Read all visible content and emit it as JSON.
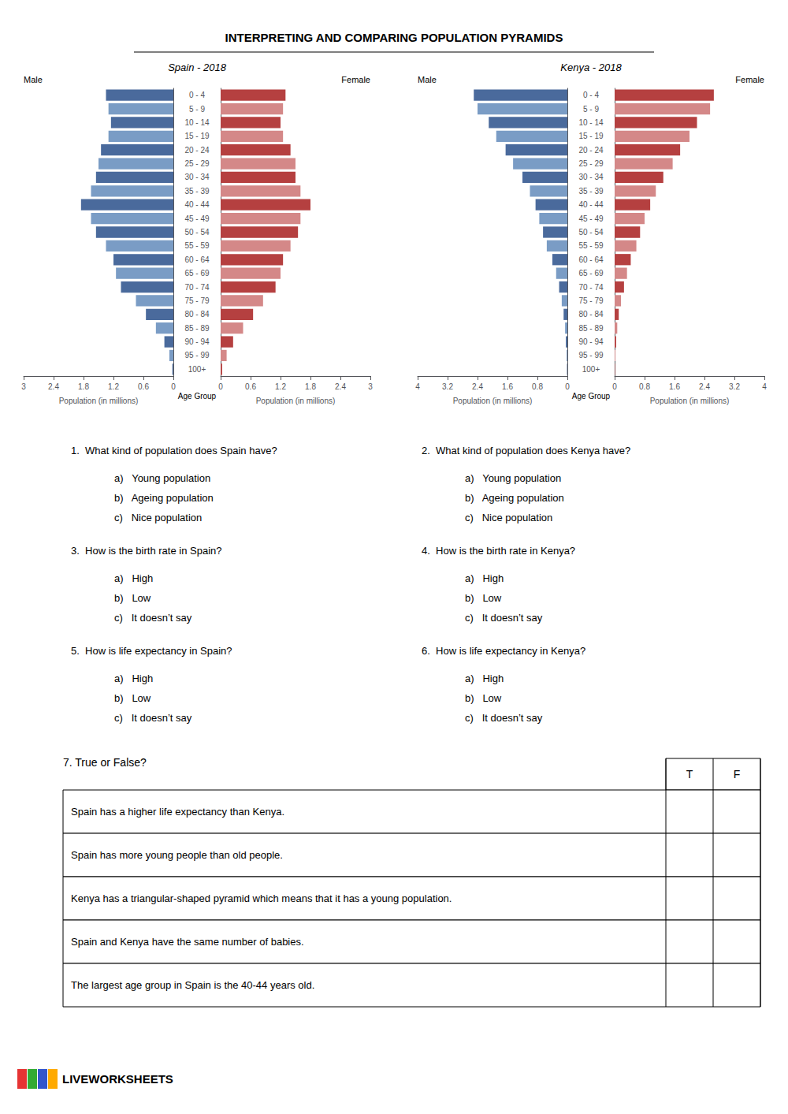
{
  "title": "INTERPRETING AND COMPARING POPULATION PYRAMIDS",
  "chart_data": [
    {
      "type": "bar",
      "orientation": "horizontal",
      "title": "Spain - 2018",
      "categories": [
        "100+",
        "95 - 99",
        "90 - 94",
        "85 - 89",
        "80 - 84",
        "75 - 79",
        "70 - 74",
        "65 - 69",
        "60 - 64",
        "55 - 59",
        "50 - 54",
        "45 - 49",
        "40 - 44",
        "35 - 39",
        "30 - 34",
        "25 - 29",
        "20 - 24",
        "15 - 19",
        "10 - 14",
        "5 - 9",
        "0 - 4"
      ],
      "series": [
        {
          "name": "Male",
          "values": [
            0.02,
            0.08,
            0.18,
            0.35,
            0.55,
            0.75,
            1.05,
            1.15,
            1.2,
            1.35,
            1.55,
            1.65,
            1.85,
            1.65,
            1.55,
            1.5,
            1.45,
            1.3,
            1.25,
            1.3,
            1.35
          ],
          "colors": [
            "#4a6a9c",
            "#7a9cc5",
            "#4a6a9c",
            "#7a9cc5",
            "#4a6a9c",
            "#7a9cc5",
            "#4a6a9c",
            "#7a9cc5",
            "#4a6a9c",
            "#7a9cc5",
            "#4a6a9c",
            "#7a9cc5",
            "#4a6a9c",
            "#7a9cc5",
            "#4a6a9c",
            "#7a9cc5",
            "#4a6a9c",
            "#7a9cc5",
            "#4a6a9c",
            "#7a9cc5",
            "#4a6a9c"
          ]
        },
        {
          "name": "Female",
          "values": [
            0.03,
            0.12,
            0.25,
            0.45,
            0.65,
            0.85,
            1.1,
            1.2,
            1.25,
            1.4,
            1.55,
            1.6,
            1.8,
            1.6,
            1.5,
            1.5,
            1.4,
            1.25,
            1.2,
            1.25,
            1.3
          ],
          "colors": [
            "#b54040",
            "#d48888",
            "#b54040",
            "#d48888",
            "#b54040",
            "#d48888",
            "#b54040",
            "#d48888",
            "#b54040",
            "#d48888",
            "#b54040",
            "#d48888",
            "#b54040",
            "#d48888",
            "#b54040",
            "#d48888",
            "#b54040",
            "#d48888",
            "#b54040",
            "#d48888",
            "#b54040"
          ]
        }
      ],
      "xlabel": "Population (in millions)",
      "ylabel": "Age Group",
      "xlim": [
        0,
        3
      ],
      "xticks": [
        0,
        0.6,
        1.2,
        1.8,
        2.4,
        3
      ],
      "grid": false
    },
    {
      "type": "bar",
      "orientation": "horizontal",
      "title": "Kenya - 2018",
      "categories": [
        "100+",
        "95 - 99",
        "90 - 94",
        "85 - 89",
        "80 - 84",
        "75 - 79",
        "70 - 74",
        "65 - 69",
        "60 - 64",
        "55 - 59",
        "50 - 54",
        "45 - 49",
        "40 - 44",
        "35 - 39",
        "30 - 34",
        "25 - 29",
        "20 - 24",
        "15 - 19",
        "10 - 14",
        "5 - 9",
        "0 - 4"
      ],
      "series": [
        {
          "name": "Male",
          "values": [
            0.01,
            0.02,
            0.04,
            0.06,
            0.1,
            0.15,
            0.22,
            0.3,
            0.4,
            0.55,
            0.65,
            0.75,
            0.85,
            1.0,
            1.2,
            1.45,
            1.65,
            1.9,
            2.1,
            2.4,
            2.5
          ],
          "colors": [
            "#4a6a9c",
            "#7a9cc5",
            "#4a6a9c",
            "#7a9cc5",
            "#4a6a9c",
            "#7a9cc5",
            "#4a6a9c",
            "#7a9cc5",
            "#4a6a9c",
            "#7a9cc5",
            "#4a6a9c",
            "#7a9cc5",
            "#4a6a9c",
            "#7a9cc5",
            "#4a6a9c",
            "#7a9cc5",
            "#4a6a9c",
            "#7a9cc5",
            "#4a6a9c",
            "#7a9cc5",
            "#4a6a9c"
          ]
        },
        {
          "name": "Female",
          "values": [
            0.01,
            0.02,
            0.04,
            0.07,
            0.11,
            0.17,
            0.25,
            0.33,
            0.43,
            0.58,
            0.68,
            0.8,
            0.95,
            1.1,
            1.3,
            1.55,
            1.75,
            2.0,
            2.2,
            2.55,
            2.65
          ],
          "colors": [
            "#b54040",
            "#d48888",
            "#b54040",
            "#d48888",
            "#b54040",
            "#d48888",
            "#b54040",
            "#d48888",
            "#b54040",
            "#d48888",
            "#b54040",
            "#d48888",
            "#b54040",
            "#d48888",
            "#b54040",
            "#d48888",
            "#b54040",
            "#d48888",
            "#b54040",
            "#d48888",
            "#b54040"
          ]
        }
      ],
      "xlabel": "Population (in millions)",
      "ylabel": "Age Group",
      "xlim": [
        0,
        4
      ],
      "xticks": [
        0,
        0.8,
        1.6,
        2.4,
        3.2,
        4
      ],
      "grid": false
    }
  ],
  "annotations": {
    "questions": [
      {
        "text": "1.  What kind of population does Spain have?",
        "options": [
          "a)   Young population",
          "b)   Ageing population",
          "c)   Nice population"
        ]
      },
      {
        "text": "2.  What kind of population does Kenya have?",
        "options": [
          "a)   Young population",
          "b)   Ageing population",
          "c)   Nice population"
        ]
      },
      {
        "text": "3.  How is the birth rate in Spain?",
        "options": [
          "a)   High",
          "b)   Low",
          "c)   It doesn’t say"
        ]
      },
      {
        "text": "4.  How is the birth rate in Kenya?",
        "options": [
          "a)   High",
          "b)   Low",
          "c)   It doesn’t say"
        ]
      },
      {
        "text": "5.  How is life expectancy in Spain?",
        "options": [
          "a)   High",
          "b)   Low",
          "c)   It doesn’t say"
        ]
      },
      {
        "text": "6.  How is life expectancy in Kenya?",
        "options": [
          "a)   High",
          "b)   Low",
          "c)   It doesn’t say"
        ]
      }
    ],
    "true_false_label": "7. True or False?",
    "true_false_header": [
      "T",
      "F"
    ],
    "true_false_rows": [
      "Spain has a higher life expectancy than Kenya.",
      "Spain has more young people than old people.",
      "Kenya has a triangular-shaped pyramid which means that it has a young population.",
      "Spain and Kenya have the same number of babies.",
      "The largest age group in Spain is the 40-44 years old."
    ],
    "logo": {
      "text": "LIVEWORKSHEETS",
      "colors": [
        "#e63333",
        "#33aa33",
        "#3355cc",
        "#ffaa00"
      ]
    }
  }
}
